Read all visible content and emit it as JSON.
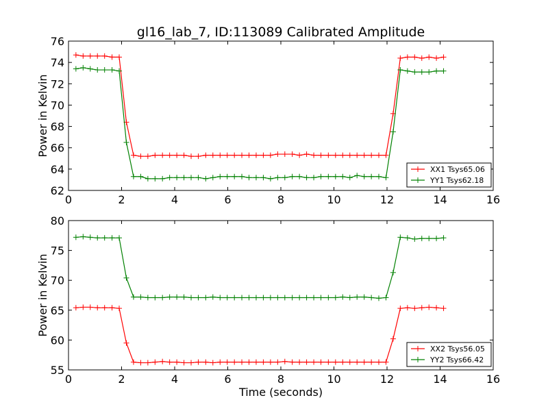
{
  "chart_data": [
    {
      "type": "line",
      "title": "gl16_lab_7, ID:113089 Calibrated Amplitude",
      "xlabel": "",
      "ylabel": "Power in Kelvin",
      "xlim": [
        0,
        16
      ],
      "ylim": [
        62,
        76
      ],
      "xticks": [
        0,
        2,
        4,
        6,
        8,
        10,
        12,
        14,
        16
      ],
      "yticks": [
        62,
        64,
        66,
        68,
        70,
        72,
        74,
        76
      ],
      "grid": false,
      "legend_position": "lower-right",
      "x": [
        0.28,
        0.55,
        0.82,
        1.09,
        1.36,
        1.64,
        1.91,
        2.18,
        2.45,
        2.72,
        2.99,
        3.26,
        3.54,
        3.81,
        4.08,
        4.35,
        4.62,
        4.89,
        5.17,
        5.44,
        5.71,
        5.98,
        6.25,
        6.53,
        6.8,
        7.07,
        7.34,
        7.61,
        7.88,
        8.15,
        8.43,
        8.7,
        8.97,
        9.24,
        9.51,
        9.79,
        10.06,
        10.33,
        10.6,
        10.87,
        11.14,
        11.41,
        11.69,
        11.96,
        12.23,
        12.5,
        12.77,
        13.04,
        13.31,
        13.58,
        13.86,
        14.13
      ],
      "series": [
        {
          "name": "XX1 Tsys65.06",
          "color": "#ff0000",
          "values": [
            74.7,
            74.6,
            74.6,
            74.6,
            74.6,
            74.5,
            74.5,
            68.4,
            65.3,
            65.2,
            65.2,
            65.3,
            65.3,
            65.3,
            65.3,
            65.3,
            65.2,
            65.2,
            65.3,
            65.3,
            65.3,
            65.3,
            65.3,
            65.3,
            65.3,
            65.3,
            65.3,
            65.3,
            65.4,
            65.4,
            65.4,
            65.3,
            65.4,
            65.3,
            65.3,
            65.3,
            65.3,
            65.3,
            65.3,
            65.3,
            65.3,
            65.3,
            65.3,
            65.3,
            69.2,
            74.4,
            74.5,
            74.5,
            74.4,
            74.5,
            74.4,
            74.5
          ]
        },
        {
          "name": "YY1 Tsys62.18",
          "color": "#008000",
          "values": [
            73.4,
            73.5,
            73.4,
            73.3,
            73.3,
            73.3,
            73.2,
            66.5,
            63.3,
            63.3,
            63.1,
            63.1,
            63.1,
            63.2,
            63.2,
            63.2,
            63.2,
            63.2,
            63.1,
            63.2,
            63.3,
            63.3,
            63.3,
            63.3,
            63.2,
            63.2,
            63.2,
            63.1,
            63.2,
            63.2,
            63.3,
            63.3,
            63.2,
            63.2,
            63.3,
            63.3,
            63.3,
            63.3,
            63.2,
            63.4,
            63.3,
            63.3,
            63.3,
            63.2,
            67.5,
            73.3,
            73.2,
            73.1,
            73.1,
            73.1,
            73.2,
            73.2
          ]
        }
      ]
    },
    {
      "type": "line",
      "title": "",
      "xlabel": "Time (seconds)",
      "ylabel": "Power in Kelvin",
      "xlim": [
        0,
        16
      ],
      "ylim": [
        55,
        80
      ],
      "xticks": [
        0,
        2,
        4,
        6,
        8,
        10,
        12,
        14,
        16
      ],
      "yticks": [
        55,
        60,
        65,
        70,
        75,
        80
      ],
      "grid": false,
      "legend_position": "lower-right",
      "x": [
        0.28,
        0.55,
        0.82,
        1.09,
        1.36,
        1.64,
        1.91,
        2.18,
        2.45,
        2.72,
        2.99,
        3.26,
        3.54,
        3.81,
        4.08,
        4.35,
        4.62,
        4.89,
        5.17,
        5.44,
        5.71,
        5.98,
        6.25,
        6.53,
        6.8,
        7.07,
        7.34,
        7.61,
        7.88,
        8.15,
        8.43,
        8.7,
        8.97,
        9.24,
        9.51,
        9.79,
        10.06,
        10.33,
        10.6,
        10.87,
        11.14,
        11.41,
        11.69,
        11.96,
        12.23,
        12.5,
        12.77,
        13.04,
        13.31,
        13.58,
        13.86,
        14.13
      ],
      "series": [
        {
          "name": "XX2 Tsys56.05",
          "color": "#ff0000",
          "values": [
            65.4,
            65.5,
            65.5,
            65.4,
            65.4,
            65.4,
            65.3,
            59.5,
            56.3,
            56.2,
            56.2,
            56.3,
            56.4,
            56.3,
            56.3,
            56.2,
            56.2,
            56.3,
            56.3,
            56.2,
            56.3,
            56.3,
            56.3,
            56.3,
            56.3,
            56.3,
            56.3,
            56.3,
            56.3,
            56.4,
            56.3,
            56.3,
            56.3,
            56.3,
            56.3,
            56.3,
            56.3,
            56.3,
            56.3,
            56.3,
            56.3,
            56.3,
            56.3,
            56.3,
            60.2,
            65.3,
            65.4,
            65.3,
            65.4,
            65.5,
            65.4,
            65.3
          ]
        },
        {
          "name": "YY2 Tsys66.42",
          "color": "#008000",
          "values": [
            77.2,
            77.3,
            77.2,
            77.1,
            77.1,
            77.1,
            77.1,
            70.4,
            67.2,
            67.2,
            67.1,
            67.1,
            67.1,
            67.2,
            67.2,
            67.2,
            67.1,
            67.1,
            67.1,
            67.2,
            67.1,
            67.1,
            67.1,
            67.1,
            67.1,
            67.1,
            67.1,
            67.1,
            67.1,
            67.1,
            67.1,
            67.1,
            67.1,
            67.1,
            67.1,
            67.1,
            67.1,
            67.2,
            67.1,
            67.2,
            67.2,
            67.1,
            67.0,
            67.1,
            71.3,
            77.2,
            77.1,
            76.9,
            77.0,
            77.0,
            77.0,
            77.1
          ]
        }
      ]
    }
  ]
}
